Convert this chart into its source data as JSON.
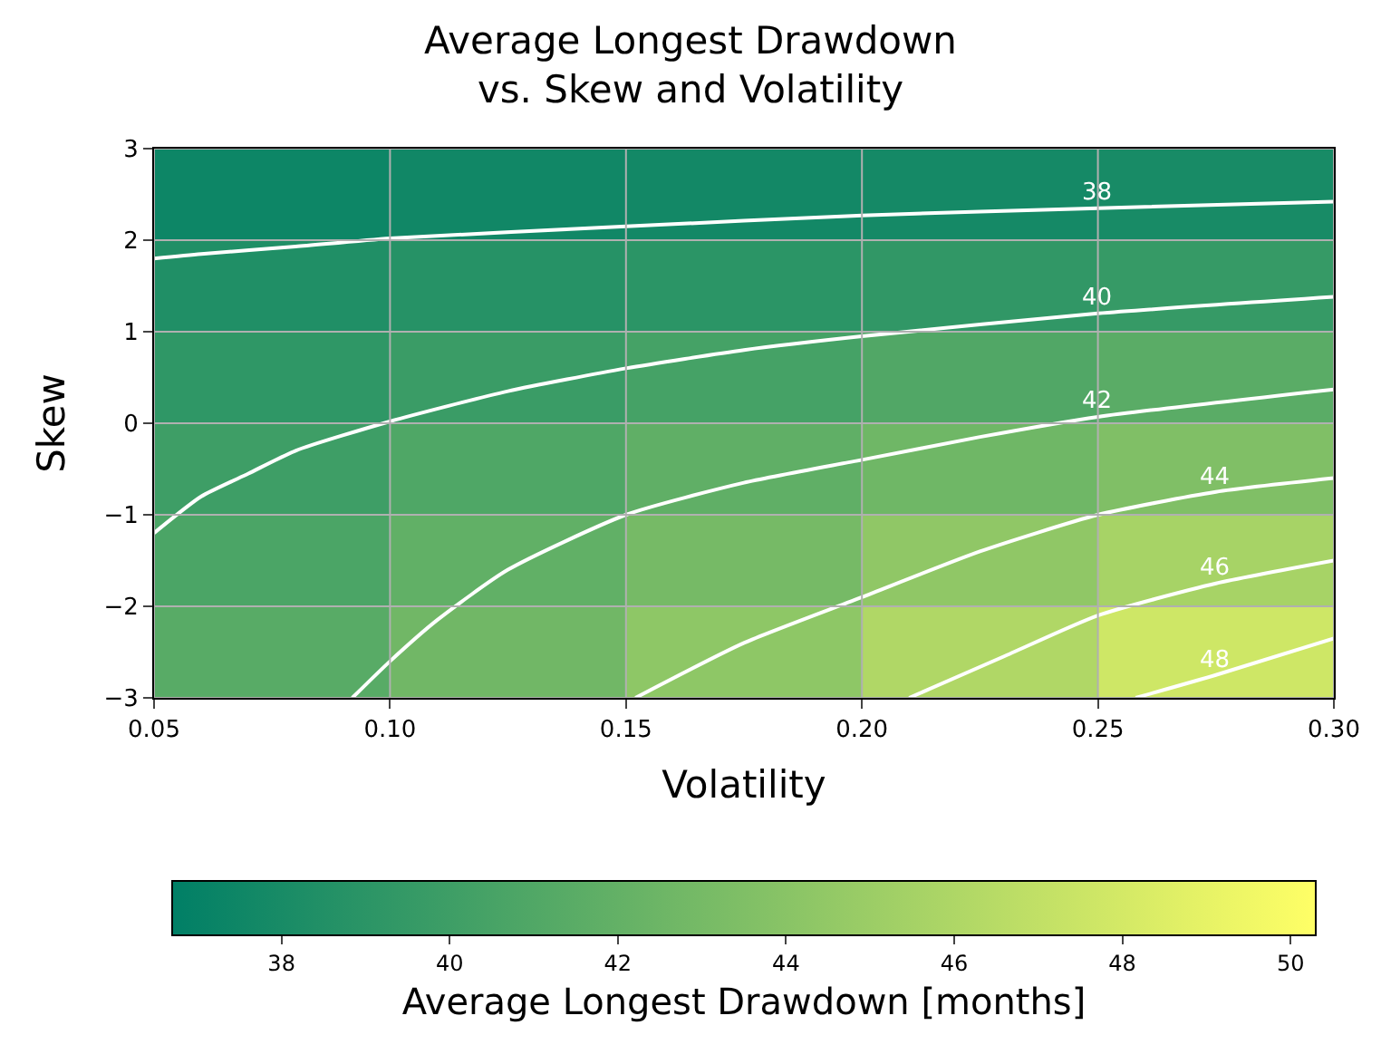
{
  "chart_data": {
    "type": "heatmap",
    "title": "Average Longest Drawdown\nvs. Skew and Volatility",
    "xlabel": "Volatility",
    "ylabel": "Skew",
    "clabel": "Average Longest Drawdown [months]",
    "cells": [
      [
        37.4,
        37.6,
        37.7,
        37.8,
        38.0
      ],
      [
        38.4,
        38.7,
        39.0,
        39.3,
        39.6
      ],
      [
        39.2,
        39.8,
        40.4,
        41.0,
        41.5
      ],
      [
        40.0,
        40.9,
        41.8,
        42.6,
        43.5
      ],
      [
        40.7,
        41.9,
        43.0,
        44.4,
        45.6
      ],
      [
        41.4,
        42.7,
        44.3,
        46.1,
        47.7
      ]
    ],
    "series": [
      {
        "type": "line",
        "name": "38",
        "color": "#ffffff",
        "x": [
          0.05,
          0.06,
          0.08,
          0.1,
          0.15,
          0.2,
          0.25,
          0.3
        ],
        "values": [
          1.8,
          1.85,
          1.93,
          2.02,
          2.15,
          2.27,
          2.35,
          2.42
        ]
      },
      {
        "type": "line",
        "name": "40",
        "color": "#ffffff",
        "x": [
          0.05,
          0.06,
          0.07,
          0.08,
          0.1,
          0.125,
          0.15,
          0.175,
          0.2,
          0.25,
          0.3
        ],
        "values": [
          -1.2,
          -0.8,
          -0.55,
          -0.3,
          0.02,
          0.35,
          0.6,
          0.8,
          0.95,
          1.2,
          1.38
        ]
      },
      {
        "type": "line",
        "name": "42",
        "color": "#ffffff",
        "x": [
          0.092,
          0.1,
          0.11,
          0.125,
          0.15,
          0.175,
          0.2,
          0.225,
          0.25,
          0.3
        ],
        "values": [
          -3,
          -2.6,
          -2.15,
          -1.6,
          -1.0,
          -0.65,
          -0.4,
          -0.15,
          0.07,
          0.37
        ]
      },
      {
        "type": "line",
        "name": "44",
        "color": "#ffffff",
        "x": [
          0.152,
          0.175,
          0.2,
          0.225,
          0.25,
          0.275,
          0.3
        ],
        "values": [
          -3,
          -2.4,
          -1.9,
          -1.4,
          -1.0,
          -0.75,
          -0.6
        ]
      },
      {
        "type": "line",
        "name": "46",
        "color": "#ffffff",
        "x": [
          0.21,
          0.23,
          0.25,
          0.275,
          0.3
        ],
        "values": [
          -3,
          -2.55,
          -2.1,
          -1.75,
          -1.5
        ]
      },
      {
        "type": "line",
        "name": "48",
        "color": "#ffffff",
        "x": [
          0.258,
          0.275,
          0.3
        ],
        "values": [
          -3,
          -2.75,
          -2.35
        ]
      }
    ],
    "xlim": [
      0.05,
      0.3
    ],
    "xticks": [
      {
        "value": 0.05,
        "label": "0.05"
      },
      {
        "value": 0.1,
        "label": "0.10"
      },
      {
        "value": 0.15,
        "label": "0.15"
      },
      {
        "value": 0.2,
        "label": "0.20"
      },
      {
        "value": 0.25,
        "label": "0.25"
      },
      {
        "value": 0.3,
        "label": "0.30"
      }
    ],
    "ylim": [
      -3,
      3
    ],
    "yticks": [
      {
        "value": -3,
        "label": "−3"
      },
      {
        "value": -2,
        "label": "−2"
      },
      {
        "value": -1,
        "label": "−1"
      },
      0,
      1,
      2,
      3
    ],
    "clim": [
      36.7,
      50.3
    ],
    "cticks": [
      38,
      40,
      42,
      44,
      46,
      48,
      50
    ],
    "grid": true
  }
}
